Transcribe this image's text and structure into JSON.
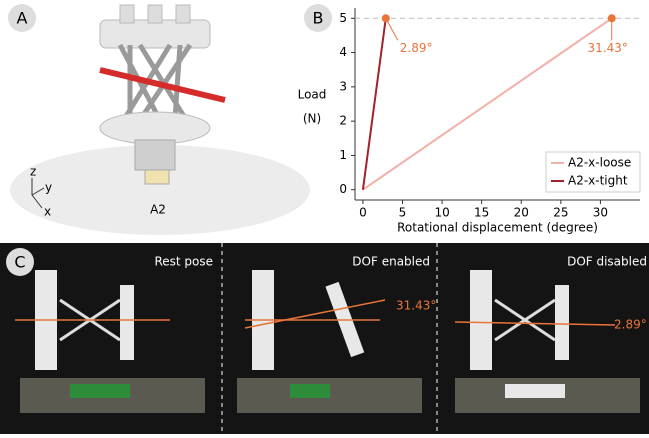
{
  "panels": {
    "a": {
      "label": "A",
      "axes": [
        "z",
        "y",
        "x"
      ],
      "caption": "A2"
    },
    "b": {
      "label": "B"
    },
    "c": {
      "label": "C",
      "titles": [
        "Rest pose",
        "DOF enabled",
        "DOF disabled"
      ],
      "angles": [
        "31.43°",
        "2.89°"
      ]
    }
  },
  "chart_data": {
    "type": "line",
    "xlabel": "Rotational displacement (degree)",
    "ylabel": [
      "Load",
      "(N)"
    ],
    "series": [
      {
        "name": "A2-x-loose",
        "color": "#f2b0a6",
        "x": [
          0,
          31.43
        ],
        "values": [
          0,
          5
        ]
      },
      {
        "name": "A2-x-tight",
        "color": "#a3222c",
        "x": [
          0,
          2.89
        ],
        "values": [
          0,
          5
        ]
      }
    ],
    "annotations": [
      {
        "text": "2.89°",
        "x": 2.89,
        "y": 5
      },
      {
        "text": "31.43°",
        "x": 31.43,
        "y": 5
      }
    ],
    "marker_color": "#e8743b",
    "reference_line": 5,
    "xlim": [
      -1,
      35
    ],
    "ylim": [
      -0.3,
      5.3
    ],
    "xticks": [
      0,
      5,
      10,
      15,
      20,
      25,
      30
    ],
    "yticks": [
      0,
      1,
      2,
      3,
      4,
      5
    ],
    "legend": "lower right"
  }
}
